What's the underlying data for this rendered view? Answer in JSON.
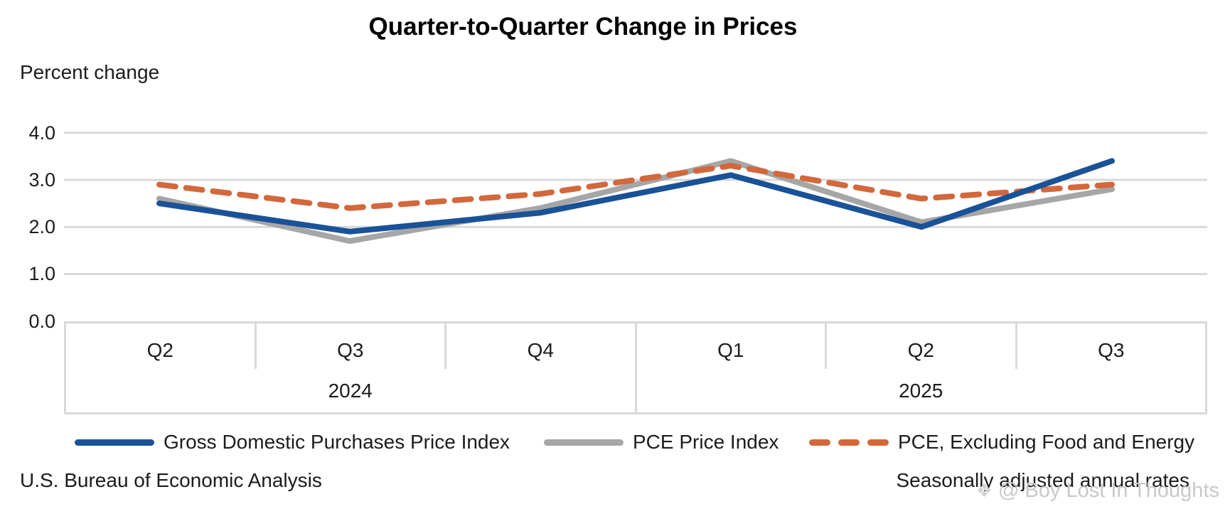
{
  "title": "Quarter-to-Quarter Change in Prices",
  "y_axis_caption": "Percent change",
  "footer": {
    "source": "U.S. Bureau of Economic Analysis",
    "note": "Seasonally adjusted annual rates"
  },
  "watermark": {
    "icon_glyph": "❖",
    "text": "@ Boy Lost In Thoughts"
  },
  "chart_data": {
    "type": "line",
    "title": "Quarter-to-Quarter Change in Prices",
    "ylabel": "Percent change",
    "xlabel": "",
    "ylim": [
      0,
      4
    ],
    "y_ticks": [
      "4.0",
      "3.0",
      "2.0",
      "1.0",
      "0.0"
    ],
    "grid": "horizontal",
    "legend_position": "bottom",
    "x_categories": [
      "Q2",
      "Q3",
      "Q4",
      "Q1",
      "Q2",
      "Q3"
    ],
    "x_year_groups": [
      {
        "label": "2024",
        "span": 3
      },
      {
        "label": "2025",
        "span": 3
      }
    ],
    "series": [
      {
        "name": "Gross Domestic Purchases Price Index",
        "color": "#1A5298",
        "style": "solid",
        "values": [
          2.5,
          1.9,
          2.3,
          3.1,
          2.0,
          3.4
        ]
      },
      {
        "name": "PCE Price Index",
        "color": "#A6A6A6",
        "style": "solid",
        "values": [
          2.6,
          1.7,
          2.4,
          3.4,
          2.1,
          2.8
        ]
      },
      {
        "name": "PCE, Excluding Food and Energy",
        "color": "#D2683C",
        "style": "dashed",
        "values": [
          2.9,
          2.4,
          2.7,
          3.3,
          2.6,
          2.9
        ]
      }
    ],
    "colors": {
      "gridline": "#D9D9D9",
      "axis_border": "#D9D9D9"
    }
  }
}
